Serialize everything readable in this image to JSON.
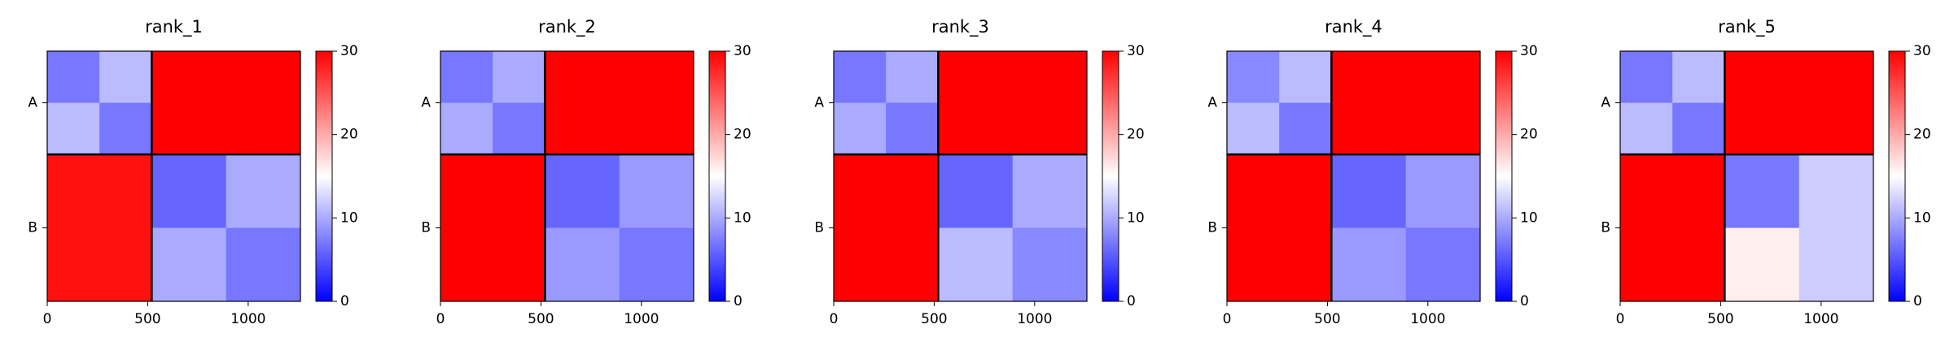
{
  "chart_data": [
    {
      "type": "heatmap",
      "title": "rank_1",
      "bins": [
        0,
        260,
        520,
        890,
        1260
      ],
      "xlim": [
        0,
        1260
      ],
      "xticks": [
        0,
        500,
        1000
      ],
      "ylim": [
        0,
        1260
      ],
      "yticks": [
        {
          "value": 260,
          "label": "A"
        },
        {
          "value": 890,
          "label": "B"
        }
      ],
      "chain_break": 520,
      "z": [
        [
          7,
          11,
          30,
          30
        ],
        [
          11,
          7,
          30,
          30
        ],
        [
          29,
          29,
          6,
          10
        ],
        [
          29,
          29,
          10,
          7
        ]
      ],
      "colorbar": {
        "lim": [
          0,
          30
        ],
        "ticks": [
          0,
          10,
          20,
          30
        ],
        "colors": [
          "#0000ff",
          "#ffffff",
          "#ff0000"
        ]
      }
    },
    {
      "type": "heatmap",
      "title": "rank_2",
      "bins": [
        0,
        260,
        520,
        890,
        1260
      ],
      "xlim": [
        0,
        1260
      ],
      "xticks": [
        0,
        500,
        1000
      ],
      "ylim": [
        0,
        1260
      ],
      "yticks": [
        {
          "value": 260,
          "label": "A"
        },
        {
          "value": 890,
          "label": "B"
        }
      ],
      "chain_break": 520,
      "z": [
        [
          7,
          10,
          30,
          30
        ],
        [
          10,
          7,
          30,
          30
        ],
        [
          30,
          30,
          6,
          9
        ],
        [
          30,
          30,
          9,
          7
        ]
      ],
      "colorbar": {
        "lim": [
          0,
          30
        ],
        "ticks": [
          0,
          10,
          20,
          30
        ],
        "colors": [
          "#0000ff",
          "#ffffff",
          "#ff0000"
        ]
      }
    },
    {
      "type": "heatmap",
      "title": "rank_3",
      "bins": [
        0,
        260,
        520,
        890,
        1260
      ],
      "xlim": [
        0,
        1260
      ],
      "xticks": [
        0,
        500,
        1000
      ],
      "ylim": [
        0,
        1260
      ],
      "yticks": [
        {
          "value": 260,
          "label": "A"
        },
        {
          "value": 890,
          "label": "B"
        }
      ],
      "chain_break": 520,
      "z": [
        [
          7,
          10,
          30,
          30
        ],
        [
          10,
          7,
          30,
          30
        ],
        [
          30,
          30,
          6,
          10
        ],
        [
          30,
          30,
          11,
          8
        ]
      ],
      "colorbar": {
        "lim": [
          0,
          30
        ],
        "ticks": [
          0,
          10,
          20,
          30
        ],
        "colors": [
          "#0000ff",
          "#ffffff",
          "#ff0000"
        ]
      }
    },
    {
      "type": "heatmap",
      "title": "rank_4",
      "bins": [
        0,
        260,
        520,
        890,
        1260
      ],
      "xlim": [
        0,
        1260
      ],
      "xticks": [
        0,
        500,
        1000
      ],
      "ylim": [
        0,
        1260
      ],
      "yticks": [
        {
          "value": 260,
          "label": "A"
        },
        {
          "value": 890,
          "label": "B"
        }
      ],
      "chain_break": 520,
      "z": [
        [
          8,
          11,
          30,
          30
        ],
        [
          11,
          7,
          30,
          30
        ],
        [
          30,
          30,
          6,
          9
        ],
        [
          30,
          30,
          9,
          7
        ]
      ],
      "colorbar": {
        "lim": [
          0,
          30
        ],
        "ticks": [
          0,
          10,
          20,
          30
        ],
        "colors": [
          "#0000ff",
          "#ffffff",
          "#ff0000"
        ]
      }
    },
    {
      "type": "heatmap",
      "title": "rank_5",
      "bins": [
        0,
        260,
        520,
        890,
        1260
      ],
      "xlim": [
        0,
        1260
      ],
      "xticks": [
        0,
        500,
        1000
      ],
      "ylim": [
        0,
        1260
      ],
      "yticks": [
        {
          "value": 260,
          "label": "A"
        },
        {
          "value": 890,
          "label": "B"
        }
      ],
      "chain_break": 520,
      "z": [
        [
          7,
          11,
          30,
          30
        ],
        [
          11,
          7,
          30,
          30
        ],
        [
          30,
          30,
          7,
          12
        ],
        [
          30,
          30,
          16,
          12
        ]
      ],
      "colorbar": {
        "lim": [
          0,
          30
        ],
        "ticks": [
          0,
          10,
          20,
          30
        ],
        "colors": [
          "#0000ff",
          "#ffffff",
          "#ff0000"
        ]
      }
    }
  ]
}
